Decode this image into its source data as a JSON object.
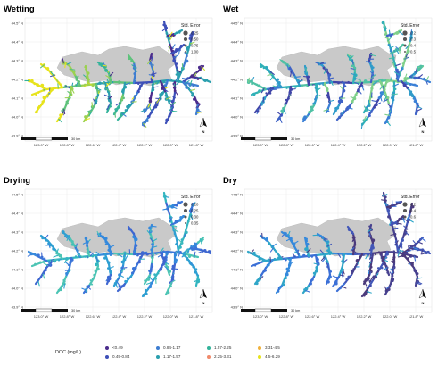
{
  "figure": {
    "axis_ticks": {
      "x": [
        "123.0° W",
        "122.8° W",
        "122.6° W",
        "122.4° W",
        "122.2° W",
        "122.0° W",
        "121.8° W"
      ],
      "y": [
        "44.5° N",
        "44.4° N",
        "44.3° N",
        "44.2° N",
        "44.1° N",
        "44.0° N",
        "43.9° N"
      ]
    },
    "scale_label": "30 km",
    "north_label": "N",
    "panels": [
      {
        "title": "Wetting",
        "legend_title": "Std. Error",
        "legend_values": [
          "0.25",
          "0.50",
          "0.75",
          "1.00"
        ],
        "palette": [
          "#e7e31c",
          "#c9dc2c",
          "#9bd150",
          "#5ec27b",
          "#33b39a",
          "#2a9fae",
          "#3d7dd1",
          "#3d4fb8",
          "#4b2c8c"
        ]
      },
      {
        "title": "Wet",
        "legend_title": "Std. Error",
        "legend_values": [
          "0.2",
          "0.3",
          "0.4",
          "0.5"
        ],
        "palette": [
          "#7fd08a",
          "#4fc1a4",
          "#2fb0b7",
          "#2f9bc9",
          "#3a7fd6",
          "#3e62c6",
          "#4045a8"
        ]
      },
      {
        "title": "Drying",
        "legend_title": "Std. Error",
        "legend_values": [
          "0.20",
          "0.25",
          "0.30",
          "0.35"
        ],
        "palette": [
          "#4cc4b4",
          "#33b5c0",
          "#2e9fd2",
          "#3589dc",
          "#3a74d8",
          "#3e66d0"
        ]
      },
      {
        "title": "Dry",
        "legend_title": "Std. Error",
        "legend_values": [
          "0.2",
          "0.4",
          "0.6"
        ],
        "palette": [
          "#2fa6c8",
          "#3589dc",
          "#3b6fd6",
          "#4257b8",
          "#47418f",
          "#4b3a7c"
        ]
      }
    ],
    "doc_legend": {
      "title": "DOC (mg/L)",
      "items": [
        {
          "label": "<0.49",
          "color": "#4b2c8c"
        },
        {
          "label": "0.49-0.84",
          "color": "#3d4fb8"
        },
        {
          "label": "0.84-1.17",
          "color": "#3d7dd1"
        },
        {
          "label": "1.17-1.57",
          "color": "#2a9fae"
        },
        {
          "label": "1.57-2.25",
          "color": "#33b39a"
        },
        {
          "label": "2.25-3.31",
          "color": "#f08a6b"
        },
        {
          "label": "3.31-4.5",
          "color": "#f0b13c"
        },
        {
          "label": "4.5-6.29",
          "color": "#e7e31c"
        }
      ]
    }
  }
}
